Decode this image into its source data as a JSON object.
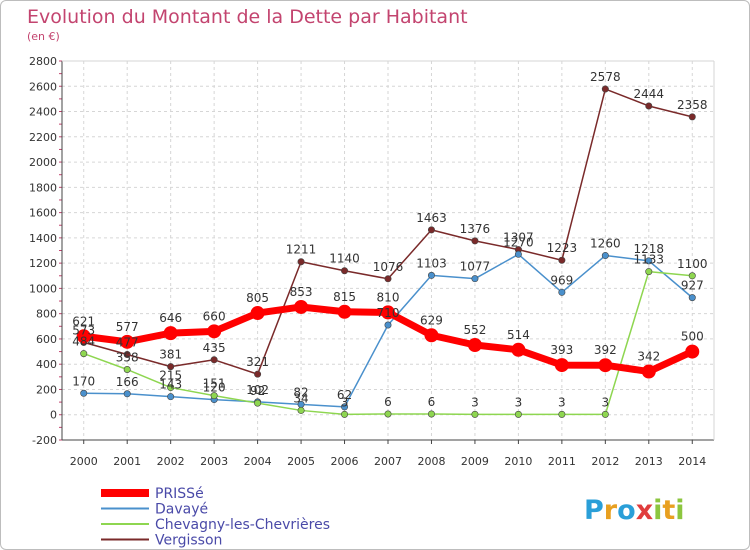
{
  "chart_data": {
    "type": "line",
    "title": "Evolution du Montant de la Dette par Habitant",
    "unit_label": "(en €)",
    "x": [
      "2000",
      "2001",
      "2002",
      "2003",
      "2004",
      "2005",
      "2006",
      "2007",
      "2008",
      "2009",
      "2010",
      "2011",
      "2012",
      "2013",
      "2014"
    ],
    "ylim": [
      -200,
      2800
    ],
    "yticks": [
      "-200",
      "0",
      "200",
      "400",
      "600",
      "800",
      "1000",
      "1200",
      "1400",
      "1600",
      "1800",
      "2000",
      "2200",
      "2400",
      "2600",
      "2800"
    ],
    "grid": true,
    "legend_position": "bottom-left",
    "series": [
      {
        "name": "PRISSé",
        "color": "#ff0000",
        "values": [
          621,
          577,
          646,
          660,
          805,
          853,
          815,
          810,
          629,
          552,
          514,
          393,
          392,
          342,
          500
        ],
        "labels": [
          "621",
          "577",
          "646",
          "660",
          "805",
          "853",
          "815",
          "810",
          "629",
          "552",
          "514",
          "393",
          "392",
          "342",
          "500"
        ]
      },
      {
        "name": "Davayé",
        "color": "#4a90cc",
        "values": [
          170,
          166,
          143,
          120,
          102,
          82,
          62,
          710,
          1103,
          1077,
          1270,
          969,
          1260,
          1218,
          927
        ],
        "labels": [
          "170",
          "166",
          "143",
          "120",
          "102",
          "82",
          "62",
          "710",
          "1103",
          "1077",
          "1270",
          "969",
          "1260",
          "1218",
          "927"
        ]
      },
      {
        "name": "Chevagny-les-Chevrières",
        "color": "#8ed650",
        "values": [
          484,
          358,
          215,
          151,
          92,
          34,
          3,
          6,
          6,
          3,
          3,
          3,
          3,
          1133,
          1100
        ],
        "labels": [
          "484",
          "358",
          "215",
          "151",
          "92",
          "34",
          "3",
          "6",
          "6",
          "3",
          "3",
          "3",
          "3",
          "1133",
          "1100"
        ]
      },
      {
        "name": "Vergisson",
        "color": "#7a2a2a",
        "values": [
          573,
          477,
          381,
          435,
          321,
          1211,
          1140,
          1076,
          1463,
          1376,
          1307,
          1223,
          2578,
          2444,
          2358
        ],
        "labels": [
          "573",
          "477",
          "381",
          "435",
          "321",
          "1211",
          "1140",
          "1076",
          "1463",
          "1376",
          "1307",
          "1223",
          "2578",
          "2444",
          "2358"
        ]
      }
    ]
  },
  "logo": {
    "text": "Proxiti",
    "letters": [
      "P",
      "r",
      "o",
      "x",
      "i",
      "t",
      "i"
    ],
    "colors": [
      "#2a9fd8",
      "#e8a020",
      "#2a9fd8",
      "#e03c3c",
      "#8cc63f",
      "#e8a020",
      "#8cc63f"
    ]
  }
}
